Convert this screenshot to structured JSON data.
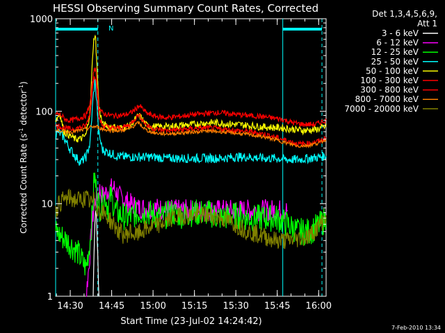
{
  "chart_data": {
    "type": "line",
    "title": "HESSI Observing Summary Count Rates, Corrected",
    "xlabel": "Start Time (23-Jul-02 14:24:42)",
    "ylabel_main": "Corrected Count Rate (s",
    "ylabel_sup1": "-1",
    "ylabel_mid": " detector",
    "ylabel_sup2": "-1",
    "ylabel_end": ")",
    "footer": "7-Feb-2010 13:34",
    "y_scale": "log",
    "ylim": [
      1,
      1000
    ],
    "xlim_minutes": [
      0,
      98
    ],
    "x_ticks": [
      {
        "m": 5.3,
        "label": "14:30"
      },
      {
        "m": 20.3,
        "label": "14:45"
      },
      {
        "m": 35.3,
        "label": "15:00"
      },
      {
        "m": 50.3,
        "label": "15:15"
      },
      {
        "m": 65.3,
        "label": "15:30"
      },
      {
        "m": 80.3,
        "label": "15:45"
      },
      {
        "m": 95.3,
        "label": "16:00"
      }
    ],
    "y_ticks": [
      {
        "v": 1,
        "label": "1"
      },
      {
        "v": 10,
        "label": "10"
      },
      {
        "v": 100,
        "label": "100"
      },
      {
        "v": 1000,
        "label": "1000"
      }
    ],
    "legend_header": [
      "Det 1,3,4,5,6,9,",
      "Att 1"
    ],
    "legend_position": "right",
    "annotations": {
      "night_flag": "N"
    },
    "flag_bars_minutes": [
      [
        0,
        15.3
      ],
      [
        82.3,
        96.5
      ]
    ],
    "vlines_solid_minutes": [
      0,
      82.3
    ],
    "vlines_dashed_minutes": [
      15.3,
      96.5
    ],
    "series": [
      {
        "name": "3 - 6 keV",
        "color": "#ffffff",
        "points": [
          [
            13.6,
            1
          ],
          [
            13.9,
            3
          ],
          [
            14.2,
            6
          ],
          [
            14.5,
            9
          ],
          [
            14.8,
            7
          ],
          [
            15.1,
            4
          ],
          [
            15.4,
            2
          ],
          [
            15.7,
            1
          ]
        ]
      },
      {
        "name": "6 - 12 keV",
        "color": "#ff00ff",
        "points": [
          [
            11,
            1
          ],
          [
            12,
            2
          ],
          [
            13,
            5
          ],
          [
            14,
            10
          ],
          [
            15,
            12
          ],
          [
            16,
            14
          ],
          [
            17,
            12
          ],
          [
            19,
            14
          ],
          [
            21,
            15
          ],
          [
            23,
            12
          ],
          [
            25,
            11
          ],
          [
            27,
            10
          ],
          [
            30,
            9
          ],
          [
            33,
            9
          ],
          [
            36,
            9
          ],
          [
            40,
            8.5
          ],
          [
            45,
            8.5
          ],
          [
            50,
            8.5
          ],
          [
            55,
            8.5
          ],
          [
            60,
            8.5
          ],
          [
            65,
            8.5
          ],
          [
            70,
            8.5
          ],
          [
            75,
            8.5
          ],
          [
            80,
            8.5
          ],
          [
            84,
            8.5
          ]
        ]
      },
      {
        "name": "12 - 25 keV",
        "color": "#00ff00",
        "points": [
          [
            0,
            5
          ],
          [
            4,
            4
          ],
          [
            8,
            3
          ],
          [
            11,
            2
          ],
          [
            12.5,
            4
          ],
          [
            13.5,
            10
          ],
          [
            14,
            20
          ],
          [
            14.5,
            16
          ],
          [
            15,
            12
          ],
          [
            16,
            9
          ],
          [
            18,
            12
          ],
          [
            19,
            9
          ],
          [
            20,
            12
          ],
          [
            22,
            8
          ],
          [
            26,
            7
          ],
          [
            30,
            8
          ],
          [
            34,
            8
          ],
          [
            38,
            7
          ],
          [
            42,
            8
          ],
          [
            46,
            7.5
          ],
          [
            50,
            8
          ],
          [
            55,
            8
          ],
          [
            60,
            7
          ],
          [
            65,
            7.5
          ],
          [
            70,
            7
          ],
          [
            75,
            7
          ],
          [
            80,
            7
          ],
          [
            84,
            6
          ],
          [
            88,
            5
          ],
          [
            92,
            5
          ],
          [
            96,
            6
          ],
          [
            98,
            7
          ]
        ]
      },
      {
        "name": "25 - 50 keV",
        "color": "#00ffff",
        "points": [
          [
            0,
            55
          ],
          [
            1,
            60
          ],
          [
            3,
            52
          ],
          [
            5,
            40
          ],
          [
            7,
            33
          ],
          [
            9,
            28
          ],
          [
            11,
            32
          ],
          [
            12.5,
            45
          ],
          [
            13.5,
            130
          ],
          [
            14.2,
            210
          ],
          [
            15,
            120
          ],
          [
            15.5,
            60
          ],
          [
            17,
            38
          ],
          [
            19,
            36
          ],
          [
            22,
            33
          ],
          [
            25,
            32
          ],
          [
            30,
            32
          ],
          [
            35,
            32
          ],
          [
            40,
            31
          ],
          [
            45,
            31
          ],
          [
            50,
            31
          ],
          [
            55,
            31
          ],
          [
            60,
            31
          ],
          [
            65,
            32
          ],
          [
            70,
            32
          ],
          [
            75,
            31
          ],
          [
            80,
            31
          ],
          [
            84,
            30
          ],
          [
            88,
            30
          ],
          [
            92,
            31
          ],
          [
            96,
            32
          ],
          [
            98,
            33
          ]
        ]
      },
      {
        "name": "50 - 100 keV",
        "color": "#ffff00",
        "points": [
          [
            0,
            80
          ],
          [
            1.5,
            95
          ],
          [
            3,
            60
          ],
          [
            5,
            55
          ],
          [
            7,
            50
          ],
          [
            9,
            50
          ],
          [
            11,
            55
          ],
          [
            12.5,
            100
          ],
          [
            13.5,
            450
          ],
          [
            14,
            650
          ],
          [
            14.5,
            600
          ],
          [
            15,
            300
          ],
          [
            15.7,
            110
          ],
          [
            17,
            72
          ],
          [
            20,
            68
          ],
          [
            24,
            66
          ],
          [
            27,
            70
          ],
          [
            30,
            90
          ],
          [
            31,
            85
          ],
          [
            33,
            70
          ],
          [
            36,
            68
          ],
          [
            40,
            68
          ],
          [
            45,
            70
          ],
          [
            50,
            72
          ],
          [
            55,
            75
          ],
          [
            58,
            75
          ],
          [
            62,
            73
          ],
          [
            66,
            72
          ],
          [
            70,
            70
          ],
          [
            74,
            68
          ],
          [
            78,
            67
          ],
          [
            82,
            66
          ],
          [
            86,
            64
          ],
          [
            90,
            62
          ],
          [
            94,
            63
          ],
          [
            98,
            68
          ]
        ]
      },
      {
        "name": "100 - 300 keV",
        "color": "#ff0000",
        "points": [
          [
            0,
            95
          ],
          [
            2,
            90
          ],
          [
            4,
            80
          ],
          [
            6,
            80
          ],
          [
            9,
            85
          ],
          [
            11,
            90
          ],
          [
            12.5,
            120
          ],
          [
            13.5,
            220
          ],
          [
            14,
            300
          ],
          [
            14.5,
            280
          ],
          [
            15,
            200
          ],
          [
            15.7,
            110
          ],
          [
            17,
            95
          ],
          [
            20,
            90
          ],
          [
            24,
            90
          ],
          [
            27,
            95
          ],
          [
            29,
            105
          ],
          [
            30,
            115
          ],
          [
            31,
            110
          ],
          [
            33,
            95
          ],
          [
            36,
            88
          ],
          [
            40,
            85
          ],
          [
            45,
            88
          ],
          [
            50,
            92
          ],
          [
            55,
            95
          ],
          [
            58,
            97
          ],
          [
            62,
            95
          ],
          [
            66,
            92
          ],
          [
            70,
            90
          ],
          [
            74,
            88
          ],
          [
            78,
            85
          ],
          [
            82,
            82
          ],
          [
            86,
            75
          ],
          [
            90,
            72
          ],
          [
            94,
            72
          ],
          [
            98,
            80
          ]
        ]
      },
      {
        "name": "300 - 800 keV",
        "color": "#ff0000",
        "points": [
          [
            0,
            70
          ],
          [
            2,
            68
          ],
          [
            4,
            65
          ],
          [
            6,
            64
          ],
          [
            9,
            67
          ],
          [
            11,
            70
          ],
          [
            12.5,
            95
          ],
          [
            13.5,
            190
          ],
          [
            14,
            250
          ],
          [
            14.5,
            230
          ],
          [
            15,
            160
          ],
          [
            15.7,
            85
          ],
          [
            17,
            70
          ],
          [
            20,
            66
          ],
          [
            24,
            66
          ],
          [
            27,
            72
          ],
          [
            29,
            85
          ],
          [
            30,
            92
          ],
          [
            31,
            85
          ],
          [
            33,
            70
          ],
          [
            36,
            64
          ],
          [
            40,
            62
          ],
          [
            45,
            63
          ],
          [
            50,
            65
          ],
          [
            55,
            66
          ],
          [
            60,
            64
          ],
          [
            65,
            62
          ],
          [
            70,
            60
          ],
          [
            75,
            57
          ],
          [
            80,
            52
          ],
          [
            84,
            48
          ],
          [
            88,
            44
          ],
          [
            92,
            45
          ],
          [
            96,
            48
          ],
          [
            98,
            52
          ]
        ]
      },
      {
        "name": "800 - 7000 keV",
        "color": "#ff8000",
        "points": [
          [
            0,
            62
          ],
          [
            2,
            62
          ],
          [
            4,
            60
          ],
          [
            6,
            60
          ],
          [
            9,
            62
          ],
          [
            11,
            64
          ],
          [
            13,
            68
          ],
          [
            15,
            68
          ],
          [
            17,
            64
          ],
          [
            20,
            62
          ],
          [
            24,
            62
          ],
          [
            27,
            65
          ],
          [
            29,
            72
          ],
          [
            30,
            75
          ],
          [
            31,
            70
          ],
          [
            33,
            62
          ],
          [
            36,
            58
          ],
          [
            40,
            57
          ],
          [
            45,
            58
          ],
          [
            50,
            60
          ],
          [
            55,
            61
          ],
          [
            60,
            60
          ],
          [
            65,
            58
          ],
          [
            70,
            56
          ],
          [
            75,
            53
          ],
          [
            80,
            49
          ],
          [
            84,
            45
          ],
          [
            88,
            42
          ],
          [
            92,
            43
          ],
          [
            96,
            46
          ],
          [
            98,
            50
          ]
        ]
      },
      {
        "name": "7000 - 20000 keV",
        "color": "#808000",
        "points": [
          [
            0,
            8
          ],
          [
            1,
            10
          ],
          [
            3,
            11
          ],
          [
            5,
            11.5
          ],
          [
            7,
            11
          ],
          [
            9,
            11
          ],
          [
            11,
            11.5
          ],
          [
            13,
            10
          ],
          [
            14,
            11
          ],
          [
            15,
            9
          ],
          [
            17,
            8
          ],
          [
            19,
            7
          ],
          [
            21,
            6
          ],
          [
            23,
            5
          ],
          [
            25,
            4.5
          ],
          [
            27,
            5
          ],
          [
            29,
            4.5
          ],
          [
            31,
            5
          ],
          [
            34,
            5.5
          ],
          [
            38,
            6
          ],
          [
            42,
            7
          ],
          [
            46,
            7.5
          ],
          [
            50,
            7.5
          ],
          [
            55,
            7.5
          ],
          [
            60,
            7
          ],
          [
            65,
            6
          ],
          [
            70,
            5
          ],
          [
            75,
            4.5
          ],
          [
            80,
            4
          ],
          [
            84,
            4
          ],
          [
            88,
            4.2
          ],
          [
            92,
            4.5
          ],
          [
            96,
            6
          ],
          [
            98,
            7.5
          ]
        ]
      }
    ]
  }
}
